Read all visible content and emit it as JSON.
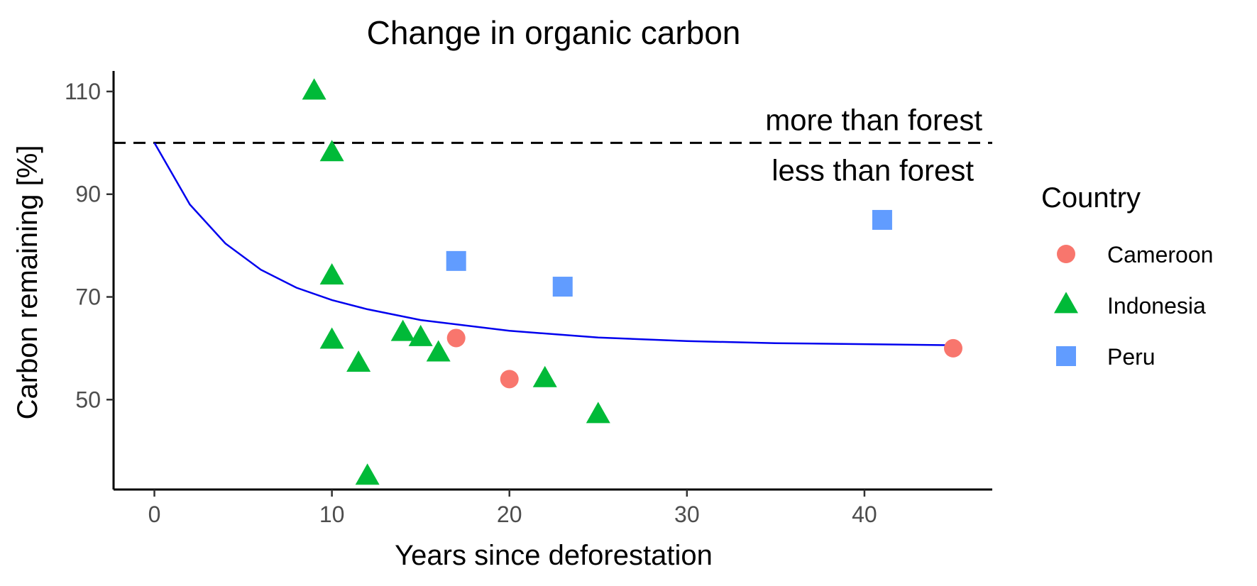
{
  "chart_data": {
    "type": "scatter",
    "title": "Change in organic carbon",
    "xlabel": "Years since deforestation",
    "ylabel": "Carbon remaining [%]",
    "xlim": [
      -2.3,
      47.2
    ],
    "ylim": [
      32.5,
      114
    ],
    "xticks": [
      0,
      10,
      20,
      30,
      40
    ],
    "yticks": [
      50,
      70,
      90,
      110
    ],
    "grid": false,
    "legend": {
      "title": "Country",
      "placement": "right"
    },
    "reference_line": {
      "y": 100,
      "style": "dashed",
      "color": "#000000",
      "label_above": "more than forest",
      "label_below": "less than forest"
    },
    "fit_curve": {
      "color": "#0000ee",
      "x_range": [
        0,
        45
      ],
      "x": [
        0,
        2,
        4,
        6,
        8,
        10,
        12,
        15,
        20,
        25,
        30,
        35,
        40,
        45
      ],
      "y": [
        100,
        88,
        80.4,
        75.3,
        71.8,
        69.4,
        67.6,
        65.5,
        63.4,
        62.1,
        61.4,
        61.0,
        60.8,
        60.6
      ]
    },
    "series": [
      {
        "name": "Cameroon",
        "marker": "circle",
        "color": "#f8766d",
        "points": [
          {
            "x": 17,
            "y": 62
          },
          {
            "x": 20,
            "y": 54
          },
          {
            "x": 45,
            "y": 60
          }
        ]
      },
      {
        "name": "Indonesia",
        "marker": "triangle",
        "color": "#00ba38",
        "points": [
          {
            "x": 9,
            "y": 110
          },
          {
            "x": 10,
            "y": 98
          },
          {
            "x": 10,
            "y": 74
          },
          {
            "x": 10,
            "y": 61.5
          },
          {
            "x": 11.5,
            "y": 57
          },
          {
            "x": 12,
            "y": 35
          },
          {
            "x": 14,
            "y": 63
          },
          {
            "x": 15,
            "y": 62
          },
          {
            "x": 16,
            "y": 59
          },
          {
            "x": 22,
            "y": 54
          },
          {
            "x": 25,
            "y": 47
          }
        ]
      },
      {
        "name": "Peru",
        "marker": "square",
        "color": "#619cff",
        "points": [
          {
            "x": 17,
            "y": 77
          },
          {
            "x": 23,
            "y": 72
          },
          {
            "x": 41,
            "y": 85
          }
        ]
      }
    ]
  }
}
